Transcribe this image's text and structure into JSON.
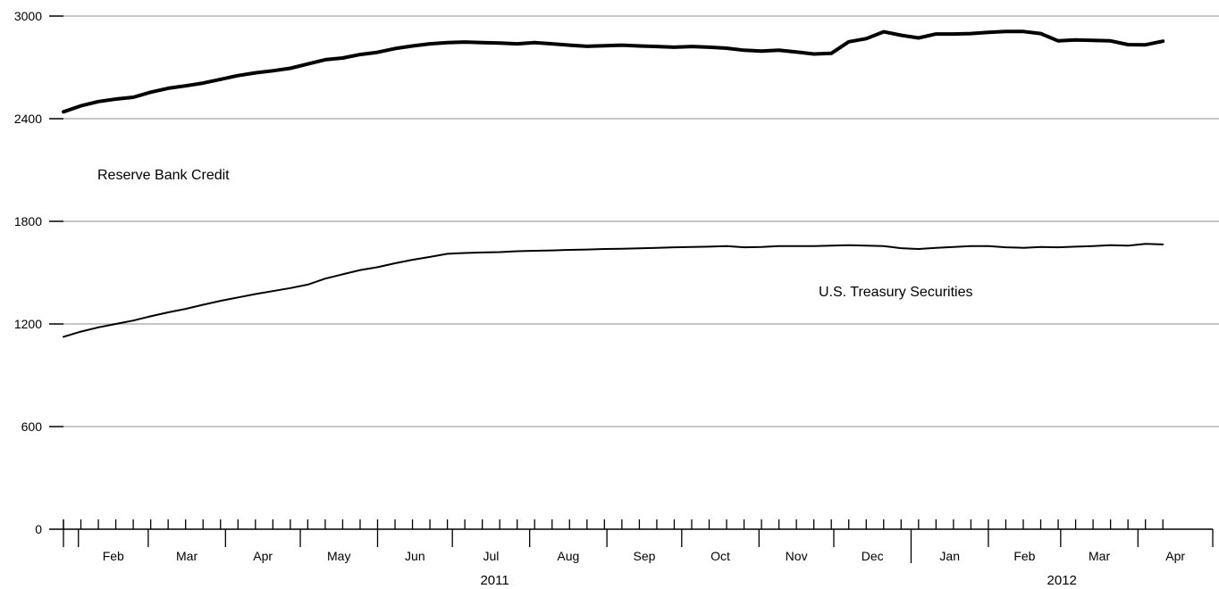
{
  "chart_data": {
    "type": "line",
    "title": "",
    "xlabel": "",
    "ylabel": "",
    "ylim": [
      0,
      3000
    ],
    "yticks": [
      0,
      600,
      1200,
      1800,
      2400,
      3000
    ],
    "grid": true,
    "colors": {
      "line": "#000000",
      "grid": "#b3b3b3"
    },
    "x_month_labels": [
      "Feb",
      "Mar",
      "Apr",
      "May",
      "Jun",
      "Jul",
      "Aug",
      "Sep",
      "Oct",
      "Nov",
      "Dec",
      "Jan",
      "Feb",
      "Mar",
      "Apr"
    ],
    "x_year_labels": [
      "2011",
      "2012"
    ],
    "x_weeks_start": "2011-01-26",
    "series": [
      {
        "name": "Reserve Bank Credit",
        "label": "Reserve Bank Credit",
        "stroke": "thick",
        "values": [
          2440,
          2475,
          2500,
          2515,
          2525,
          2555,
          2578,
          2592,
          2608,
          2630,
          2652,
          2668,
          2680,
          2695,
          2720,
          2745,
          2755,
          2775,
          2788,
          2810,
          2825,
          2838,
          2845,
          2848,
          2845,
          2842,
          2838,
          2845,
          2838,
          2830,
          2823,
          2827,
          2830,
          2825,
          2822,
          2818,
          2822,
          2818,
          2812,
          2800,
          2795,
          2800,
          2790,
          2778,
          2782,
          2850,
          2868,
          2908,
          2888,
          2872,
          2895,
          2895,
          2898,
          2905,
          2910,
          2910,
          2898,
          2855,
          2860,
          2858,
          2855,
          2833,
          2832,
          2853
        ]
      },
      {
        "name": "U.S. Treasury Securities",
        "label": "U.S. Treasury Securities",
        "stroke": "thin",
        "values": [
          1125,
          1155,
          1180,
          1200,
          1220,
          1245,
          1268,
          1288,
          1312,
          1335,
          1355,
          1375,
          1392,
          1410,
          1430,
          1465,
          1490,
          1515,
          1532,
          1555,
          1575,
          1592,
          1610,
          1615,
          1618,
          1620,
          1625,
          1628,
          1630,
          1633,
          1635,
          1638,
          1640,
          1642,
          1645,
          1648,
          1650,
          1652,
          1655,
          1648,
          1650,
          1655,
          1655,
          1655,
          1658,
          1660,
          1658,
          1655,
          1643,
          1638,
          1645,
          1650,
          1655,
          1655,
          1648,
          1645,
          1650,
          1648,
          1652,
          1655,
          1660,
          1658,
          1668,
          1665
        ]
      }
    ]
  }
}
